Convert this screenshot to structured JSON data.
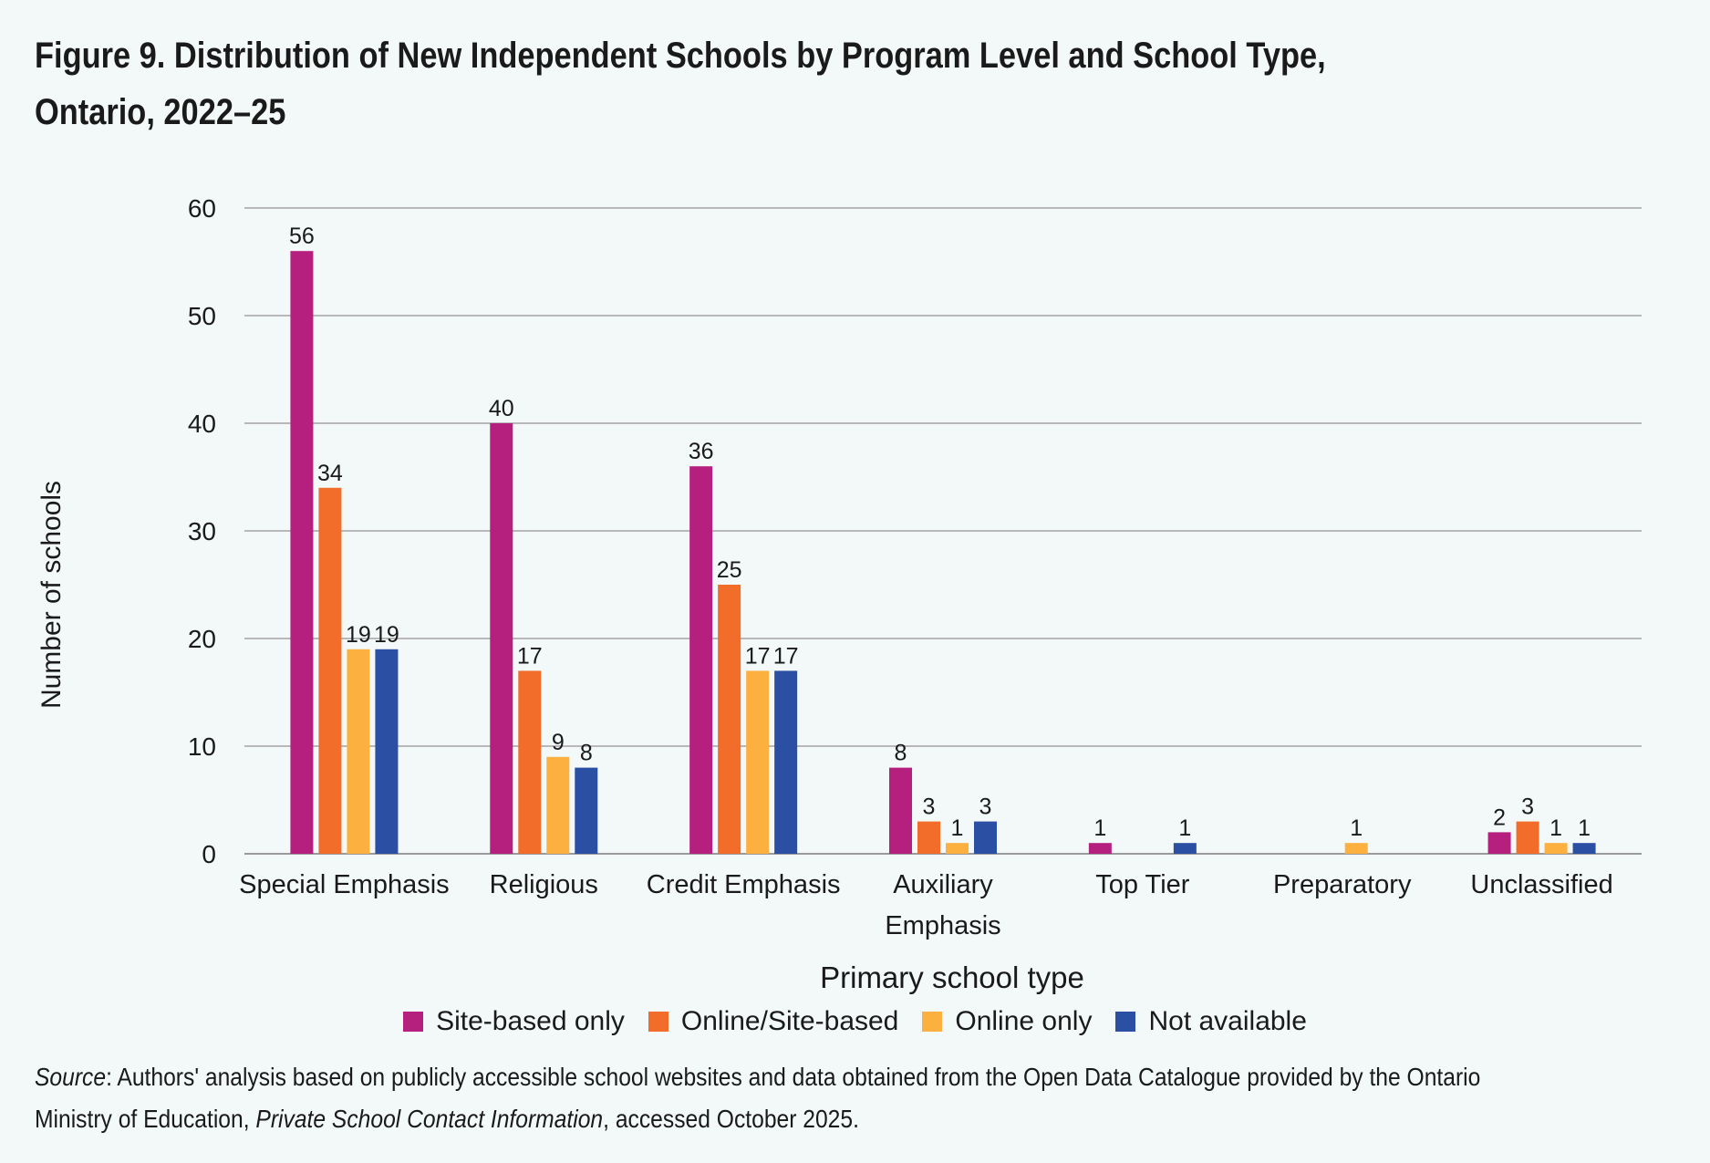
{
  "title": "Figure 9. Distribution of New Independent Schools by Program Level and School Type, Ontario, 2022–25",
  "source": {
    "label": "Source",
    "text1": ": Authors' analysis based on publicly accessible school websites and data obtained from the Open Data Catalogue provided by the Ontario Ministry of Education, ",
    "italic": "Private School Contact Information",
    "text2": ", accessed October 2025."
  },
  "chart_data": {
    "type": "bar",
    "title": "Figure 9. Distribution of New Independent Schools by Program Level and School Type, Ontario, 2022–25",
    "xlabel": "Primary school type",
    "ylabel": "Number of schools",
    "ylim": [
      0,
      60
    ],
    "yticks": [
      0,
      10,
      20,
      30,
      40,
      50,
      60
    ],
    "grid": true,
    "legend_position": "bottom",
    "categories": [
      [
        "Special Emphasis"
      ],
      [
        "Religious"
      ],
      [
        "Credit Emphasis"
      ],
      [
        "Auxiliary",
        "Emphasis"
      ],
      [
        "Top Tier"
      ],
      [
        "Preparatory"
      ],
      [
        "Unclassified"
      ]
    ],
    "series": [
      {
        "name": "Site-based only",
        "color": "#b5207e",
        "values": [
          56,
          40,
          36,
          8,
          1,
          0,
          2
        ]
      },
      {
        "name": "Online/Site-based",
        "color": "#f26c2a",
        "values": [
          34,
          17,
          25,
          3,
          0,
          0,
          3
        ]
      },
      {
        "name": "Online only",
        "color": "#fbb040",
        "values": [
          19,
          9,
          17,
          1,
          0,
          1,
          1
        ]
      },
      {
        "name": "Not available",
        "color": "#2b4fa3",
        "values": [
          19,
          8,
          17,
          3,
          1,
          0,
          1
        ]
      }
    ]
  }
}
